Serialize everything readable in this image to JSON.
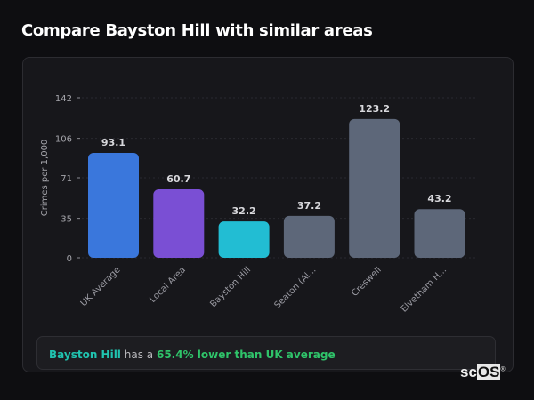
{
  "title": "Compare Bayston Hill with similar areas",
  "chart_data": {
    "type": "bar",
    "title": "",
    "xlabel": "",
    "ylabel": "Crimes per 1,000",
    "ylim": [
      0,
      142
    ],
    "yticks": [
      0,
      35,
      71,
      106,
      142
    ],
    "grid": true,
    "categories": [
      "UK Average",
      "Local Area",
      "Bayston Hill",
      "Seaton (Al...",
      "Creswell",
      "Elvetham H..."
    ],
    "values": [
      93.1,
      60.7,
      32.2,
      37.2,
      123.2,
      43.2
    ],
    "value_labels": [
      "93.1",
      "60.7",
      "32.2",
      "37.2",
      "123.2",
      "43.2"
    ],
    "colors": [
      "#3a77dc",
      "#7a4fd4",
      "#22bdd3",
      "#5d6779",
      "#5d6779",
      "#5d6779"
    ]
  },
  "insight": {
    "area": "Bayston Hill",
    "middle": "has a",
    "comparison": "65.4% lower than UK average"
  },
  "logo": {
    "text_sc": "sc",
    "text_os": "OS",
    "reg": "®"
  }
}
